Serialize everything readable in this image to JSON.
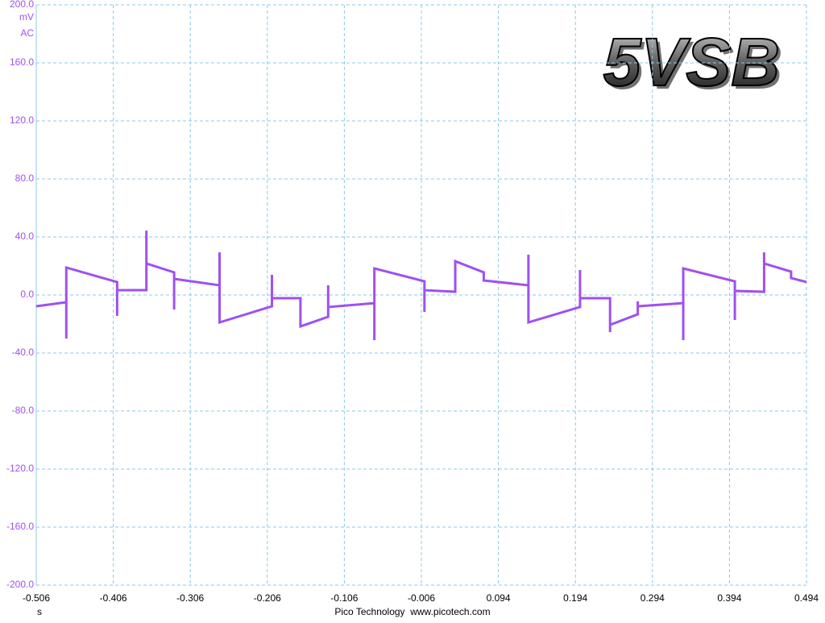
{
  "chart_data": {
    "type": "line",
    "title": "5VSB",
    "y_unit": "mV",
    "coupling": "AC",
    "x_unit": "s",
    "footer": "Pico Technology  www.picotech.com",
    "color": "#a050f0",
    "grid": true,
    "xlim": [
      -0.506,
      0.494
    ],
    "xticks": [
      -0.506,
      -0.406,
      -0.306,
      -0.206,
      -0.106,
      -0.006,
      0.094,
      0.194,
      0.294,
      0.394,
      0.494
    ],
    "ylim": [
      -200,
      200
    ],
    "yticks": [
      {
        "value": 200,
        "label": "200.0"
      },
      {
        "value": 160,
        "label": "160.0"
      },
      {
        "value": 120,
        "label": "120.0"
      },
      {
        "value": 80,
        "label": "80.0"
      },
      {
        "value": 40,
        "label": "40.0"
      },
      {
        "value": 0,
        "label": "0.0"
      },
      {
        "value": -40,
        "label": "-40.0"
      },
      {
        "value": -80,
        "label": "-80.0"
      },
      {
        "value": -120,
        "label": "-120.0"
      },
      {
        "value": -160,
        "label": "-160.0"
      },
      {
        "value": -200,
        "label": "-200.0"
      }
    ],
    "x": [
      -0.506,
      -0.467,
      -0.467,
      -0.467,
      -0.401,
      -0.401,
      -0.401,
      -0.401,
      -0.363,
      -0.363,
      -0.363,
      -0.327,
      -0.327,
      -0.327,
      -0.327,
      -0.268,
      -0.268,
      -0.268,
      -0.2,
      -0.2,
      -0.2,
      -0.163,
      -0.163,
      -0.127,
      -0.127,
      -0.127,
      -0.067,
      -0.067,
      -0.067,
      -0.002,
      -0.002,
      -0.002,
      -0.002,
      0.038,
      0.038,
      0.075,
      0.075,
      0.133,
      0.133,
      0.133,
      0.2,
      0.2,
      0.2,
      0.239,
      0.239,
      0.239,
      0.275,
      0.275,
      0.275,
      0.334,
      0.334,
      0.334,
      0.401,
      0.401,
      0.401,
      0.401,
      0.439,
      0.439,
      0.439,
      0.474,
      0.474,
      0.494
    ],
    "values": [
      -7.8,
      -5,
      -30,
      18.9,
      8.9,
      3.3,
      -14.4,
      3.3,
      3.3,
      44.4,
      21.7,
      15.6,
      11.1,
      -10,
      11.1,
      6.7,
      29.4,
      -18.9,
      -7.8,
      13.9,
      -2.2,
      -2.2,
      -21.7,
      -15,
      6.7,
      -8.3,
      -5.6,
      -31.1,
      18.3,
      9.4,
      3.3,
      -11.7,
      3.3,
      2.2,
      23.3,
      15.6,
      10,
      6.7,
      27.8,
      -18.9,
      -8.3,
      17.2,
      -2.2,
      -2.2,
      -25.6,
      -20.6,
      -13.3,
      -4.4,
      -7.8,
      -5.6,
      -31.1,
      18.3,
      9.4,
      2.8,
      -17.2,
      2.8,
      2.2,
      29.4,
      21.7,
      16.1,
      11.7,
      8.9
    ]
  }
}
